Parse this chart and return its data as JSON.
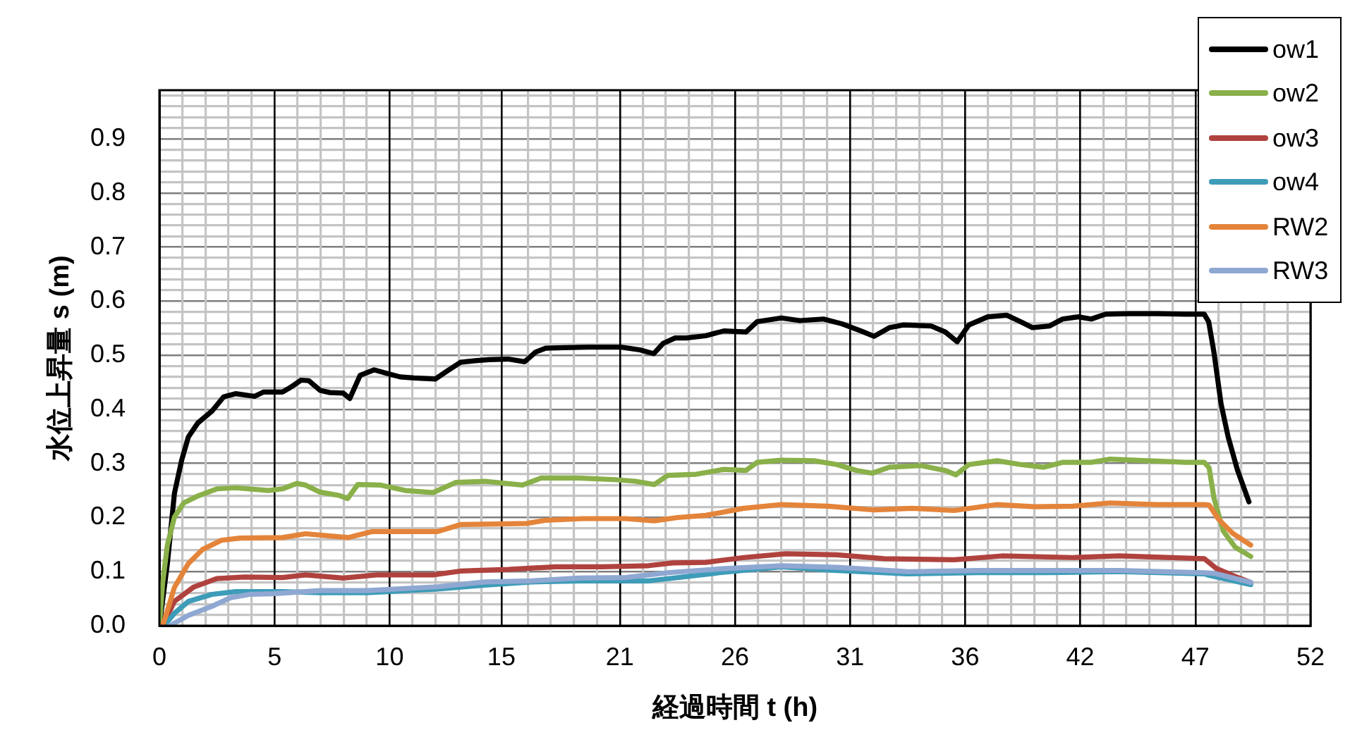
{
  "chart_data": {
    "type": "line",
    "xlabel": "経過時間 t (h)",
    "ylabel": "水位上昇量 s (m)",
    "xlim": [
      0,
      52
    ],
    "ylim": [
      0,
      0.99
    ],
    "xticks": [
      0,
      {
        "value": 1.04,
        "label": null
      },
      {
        "value": 2.08,
        "label": null
      },
      {
        "value": 3.12,
        "label": null
      },
      {
        "value": 4.16,
        "label": null
      },
      {
        "value": 5.2,
        "label": "5"
      },
      {
        "value": 6.24,
        "label": null
      },
      {
        "value": 7.28,
        "label": null
      },
      {
        "value": 8.32,
        "label": null
      },
      {
        "value": 9.36,
        "label": null
      },
      {
        "value": 10.4,
        "label": "10"
      },
      {
        "value": 11.44,
        "label": null
      },
      {
        "value": 12.48,
        "label": null
      },
      {
        "value": 13.52,
        "label": null
      },
      {
        "value": 14.56,
        "label": null
      },
      {
        "value": 15.45,
        "label": "15"
      },
      {
        "value": 16.64,
        "label": null
      },
      {
        "value": 17.68,
        "label": null
      },
      {
        "value": 18.72,
        "label": null
      },
      {
        "value": 19.76,
        "label": null
      },
      {
        "value": 20.8,
        "label": "21"
      },
      {
        "value": 21.84,
        "label": null
      },
      {
        "value": 22.88,
        "label": null
      },
      {
        "value": 23.92,
        "label": null
      },
      {
        "value": 24.96,
        "label": null
      },
      26,
      {
        "value": 27.04,
        "label": null
      },
      {
        "value": 28.08,
        "label": null
      },
      {
        "value": 29.12,
        "label": null
      },
      {
        "value": 30.16,
        "label": null
      },
      {
        "value": 31.2,
        "label": "31"
      },
      {
        "value": 32.24,
        "label": null
      },
      {
        "value": 33.28,
        "label": null
      },
      {
        "value": 34.32,
        "label": null
      },
      {
        "value": 35.36,
        "label": null
      },
      {
        "value": 36.4,
        "label": "36"
      },
      {
        "value": 37.44,
        "label": null
      },
      {
        "value": 38.48,
        "label": null
      },
      {
        "value": 39.52,
        "label": null
      },
      {
        "value": 40.56,
        "label": null
      },
      {
        "value": 41.6,
        "label": "42"
      },
      {
        "value": 42.64,
        "label": null
      },
      {
        "value": 43.68,
        "label": null
      },
      {
        "value": 44.72,
        "label": null
      },
      {
        "value": 45.76,
        "label": null
      },
      {
        "value": 46.8,
        "label": "47"
      },
      {
        "value": 47.84,
        "label": null
      },
      {
        "value": 48.88,
        "label": null
      },
      {
        "value": 49.92,
        "label": null
      },
      {
        "value": 50.96,
        "label": null
      },
      52
    ],
    "yticks": [
      {
        "value": 0,
        "label": "0.0"
      },
      {
        "value": 0.02,
        "label": null
      },
      {
        "value": 0.04,
        "label": null
      },
      {
        "value": 0.06,
        "label": null
      },
      {
        "value": 0.08,
        "label": null
      },
      0.1,
      {
        "value": 0.12,
        "label": null
      },
      {
        "value": 0.14,
        "label": null
      },
      {
        "value": 0.16,
        "label": null
      },
      {
        "value": 0.18,
        "label": null
      },
      0.2,
      {
        "value": 0.22,
        "label": null
      },
      {
        "value": 0.24,
        "label": null
      },
      {
        "value": 0.26,
        "label": null
      },
      {
        "value": 0.28,
        "label": null
      },
      0.3,
      {
        "value": 0.32,
        "label": null
      },
      {
        "value": 0.34,
        "label": null
      },
      {
        "value": 0.36,
        "label": null
      },
      {
        "value": 0.38,
        "label": null
      },
      0.4,
      {
        "value": 0.42,
        "label": null
      },
      {
        "value": 0.44,
        "label": null
      },
      {
        "value": 0.46,
        "label": null
      },
      {
        "value": 0.48,
        "label": null
      },
      0.5,
      {
        "value": 0.52,
        "label": null
      },
      {
        "value": 0.54,
        "label": null
      },
      {
        "value": 0.56,
        "label": null
      },
      {
        "value": 0.58,
        "label": null
      },
      0.6,
      {
        "value": 0.62,
        "label": null
      },
      {
        "value": 0.64,
        "label": null
      },
      {
        "value": 0.66,
        "label": null
      },
      {
        "value": 0.68,
        "label": null
      },
      0.7,
      {
        "value": 0.72,
        "label": null
      },
      {
        "value": 0.74,
        "label": null
      },
      {
        "value": 0.76,
        "label": null
      },
      {
        "value": 0.78,
        "label": null
      },
      0.8,
      {
        "value": 0.82,
        "label": null
      },
      {
        "value": 0.84,
        "label": null
      },
      {
        "value": 0.86,
        "label": null
      },
      {
        "value": 0.88,
        "label": null
      },
      0.9,
      {
        "value": 0.92,
        "label": null
      },
      {
        "value": 0.94,
        "label": null
      },
      {
        "value": 0.96,
        "label": null
      },
      {
        "value": 0.98,
        "label": null
      }
    ],
    "grid": true,
    "legend": "top right",
    "marker": "none",
    "line_style": "solid",
    "series": [
      {
        "name": "ow1",
        "color": "#000000",
        "x": [
          0,
          0.36,
          0.68,
          1.0,
          1.31,
          1.74,
          2.38,
          2.9,
          3.44,
          4.3,
          4.7,
          5.56,
          5.9,
          6.4,
          6.75,
          7.26,
          7.7,
          8.3,
          8.6,
          9.07,
          9.7,
          10.23,
          10.87,
          11.5,
          12.46,
          13.0,
          13.6,
          14.27,
          14.9,
          15.75,
          16.5,
          17.0,
          17.45,
          18.3,
          19.36,
          20.2,
          20.85,
          21.7,
          22.33,
          22.76,
          23.3,
          23.8,
          24.68,
          25.5,
          26.5,
          27.0,
          28.1,
          28.93,
          30.0,
          30.84,
          31.69,
          32.28,
          32.97,
          33.6,
          34.87,
          35.5,
          36.04,
          36.57,
          37.42,
          38.27,
          38.9,
          39.44,
          40.2,
          40.8,
          41.5,
          42.1,
          42.74,
          43.8,
          45.07,
          46.35,
          47.2,
          47.4,
          47.64,
          47.96,
          48.28,
          48.7,
          49.22
        ],
        "values": [
          0,
          0.115,
          0.245,
          0.305,
          0.349,
          0.375,
          0.397,
          0.423,
          0.429,
          0.424,
          0.432,
          0.432,
          0.44,
          0.454,
          0.453,
          0.435,
          0.431,
          0.43,
          0.42,
          0.463,
          0.473,
          0.467,
          0.46,
          0.458,
          0.456,
          0.471,
          0.487,
          0.49,
          0.492,
          0.493,
          0.488,
          0.506,
          0.513,
          0.514,
          0.515,
          0.515,
          0.515,
          0.51,
          0.503,
          0.522,
          0.532,
          0.532,
          0.536,
          0.545,
          0.543,
          0.562,
          0.569,
          0.564,
          0.567,
          0.558,
          0.545,
          0.535,
          0.551,
          0.556,
          0.554,
          0.543,
          0.525,
          0.556,
          0.571,
          0.574,
          0.562,
          0.551,
          0.554,
          0.567,
          0.571,
          0.567,
          0.576,
          0.577,
          0.577,
          0.576,
          0.576,
          0.562,
          0.505,
          0.41,
          0.349,
          0.288,
          0.229
        ]
      },
      {
        "name": "ow2",
        "color": "#8ab04a",
        "x": [
          0,
          0.15,
          0.36,
          0.68,
          1.1,
          1.74,
          2.59,
          3.44,
          4.93,
          5.56,
          6.2,
          6.6,
          7.26,
          8.1,
          8.5,
          8.96,
          10.0,
          11.1,
          12.36,
          13.4,
          14.7,
          16.4,
          17.24,
          18.9,
          20.6,
          21.5,
          22.35,
          22.97,
          24.25,
          25.5,
          26.5,
          27.0,
          28.1,
          29.57,
          30.6,
          31.5,
          32.2,
          32.97,
          34.4,
          35.5,
          35.98,
          36.57,
          37.85,
          38.9,
          39.95,
          40.8,
          42.1,
          42.95,
          44.65,
          46.35,
          47.2,
          47.42,
          47.64,
          48.06,
          48.6,
          49.3
        ],
        "values": [
          0,
          0.08,
          0.149,
          0.201,
          0.227,
          0.24,
          0.253,
          0.255,
          0.25,
          0.253,
          0.263,
          0.26,
          0.247,
          0.241,
          0.235,
          0.261,
          0.26,
          0.25,
          0.246,
          0.265,
          0.267,
          0.26,
          0.273,
          0.273,
          0.27,
          0.267,
          0.261,
          0.278,
          0.28,
          0.289,
          0.287,
          0.302,
          0.306,
          0.305,
          0.298,
          0.287,
          0.282,
          0.293,
          0.296,
          0.287,
          0.279,
          0.298,
          0.305,
          0.298,
          0.293,
          0.302,
          0.302,
          0.308,
          0.305,
          0.302,
          0.302,
          0.292,
          0.236,
          0.175,
          0.145,
          0.128
        ]
      },
      {
        "name": "ow3",
        "color": "#b0423e",
        "x": [
          0.15,
          0.68,
          1.53,
          2.59,
          3.86,
          5.56,
          6.6,
          8.3,
          9.8,
          12.36,
          13.6,
          15.75,
          17.9,
          20.0,
          22.1,
          23.2,
          24.68,
          26.4,
          28.3,
          30.6,
          32.75,
          35.9,
          38.06,
          41.25,
          43.37,
          47.2,
          47.74,
          48.48,
          49.3
        ],
        "values": [
          0,
          0.045,
          0.071,
          0.087,
          0.09,
          0.089,
          0.094,
          0.088,
          0.094,
          0.094,
          0.101,
          0.104,
          0.109,
          0.109,
          0.111,
          0.116,
          0.117,
          0.126,
          0.133,
          0.131,
          0.124,
          0.122,
          0.129,
          0.126,
          0.129,
          0.124,
          0.106,
          0.093,
          0.08
        ]
      },
      {
        "name": "ow4",
        "color": "#3d9cb8",
        "x": [
          0.21,
          0.68,
          1.31,
          2.38,
          3.44,
          5.56,
          7.26,
          9.38,
          12.57,
          14.7,
          16.8,
          18.94,
          21.06,
          22.13,
          22.98,
          25.3,
          28.1,
          30.6,
          33.8,
          37.0,
          40.2,
          43.37,
          47.2,
          47.42,
          49.3
        ],
        "values": [
          0,
          0.023,
          0.045,
          0.058,
          0.063,
          0.063,
          0.061,
          0.061,
          0.068,
          0.075,
          0.081,
          0.083,
          0.083,
          0.083,
          0.087,
          0.098,
          0.109,
          0.102,
          0.096,
          0.098,
          0.098,
          0.1,
          0.096,
          0.093,
          0.076
        ]
      },
      {
        "name": "RW2",
        "color": "#e4843a",
        "x": [
          0.15,
          0.68,
          1.31,
          1.95,
          2.8,
          3.65,
          5.56,
          6.6,
          7.7,
          8.53,
          9.6,
          11.1,
          12.57,
          13.6,
          15.3,
          16.6,
          17.45,
          19.15,
          21.06,
          22.35,
          23.4,
          24.68,
          26.4,
          28.1,
          30.2,
          32.3,
          34.0,
          35.9,
          37.85,
          39.55,
          41.25,
          42.95,
          45.07,
          47.2,
          47.42,
          47.84,
          48.48,
          49.3
        ],
        "values": [
          0,
          0.071,
          0.115,
          0.141,
          0.158,
          0.162,
          0.163,
          0.17,
          0.166,
          0.163,
          0.174,
          0.174,
          0.174,
          0.187,
          0.188,
          0.189,
          0.195,
          0.198,
          0.198,
          0.194,
          0.2,
          0.204,
          0.217,
          0.224,
          0.221,
          0.214,
          0.217,
          0.213,
          0.224,
          0.22,
          0.221,
          0.227,
          0.224,
          0.224,
          0.223,
          0.197,
          0.171,
          0.149
        ]
      },
      {
        "name": "RW3",
        "color": "#8fa8d2",
        "x": [
          0.47,
          1.31,
          2.38,
          3.23,
          4.08,
          5.14,
          7.26,
          9.38,
          12.57,
          14.7,
          16.8,
          18.94,
          21.06,
          22.97,
          25.3,
          28.1,
          30.6,
          33.8,
          37.0,
          40.2,
          43.37,
          47.2,
          47.64,
          49.3
        ],
        "values": [
          0,
          0.019,
          0.036,
          0.052,
          0.058,
          0.059,
          0.065,
          0.065,
          0.072,
          0.081,
          0.083,
          0.088,
          0.089,
          0.098,
          0.105,
          0.111,
          0.108,
          0.1,
          0.102,
          0.102,
          0.102,
          0.098,
          0.097,
          0.08
        ]
      }
    ]
  }
}
